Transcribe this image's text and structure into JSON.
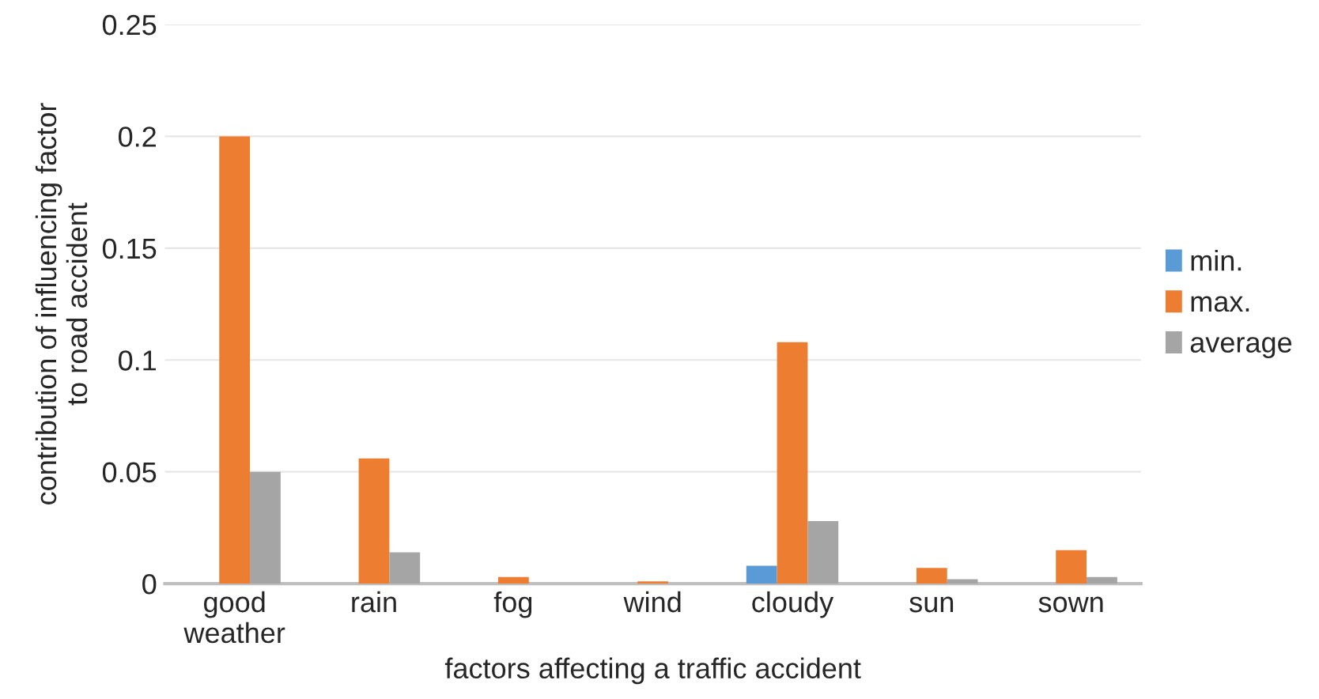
{
  "chart_data": {
    "type": "bar",
    "xlabel": "factors affecting a traffic accident",
    "ylabel": "contribution of influencing factor\nto road accident",
    "categories": [
      "good\nweather",
      "rain",
      "fog",
      "wind",
      "cloudy",
      "sun",
      "sown"
    ],
    "series": [
      {
        "name": "min.",
        "color": "#5b9bd5",
        "values": [
          null,
          null,
          null,
          null,
          0.008,
          null,
          null
        ]
      },
      {
        "name": "max.",
        "color": "#ed7d31",
        "values": [
          0.2,
          0.056,
          0.003,
          0.001,
          0.108,
          0.007,
          0.015
        ]
      },
      {
        "name": "average",
        "color": "#a5a5a5",
        "values": [
          0.05,
          0.014,
          null,
          null,
          0.028,
          0.002,
          0.003
        ]
      }
    ],
    "ylim": [
      0,
      0.25
    ],
    "yticks": [
      {
        "value": 0,
        "label": "0"
      },
      0.05,
      0.1,
      0.15,
      0.2,
      0.25
    ],
    "grid": "y",
    "legend": "right"
  }
}
